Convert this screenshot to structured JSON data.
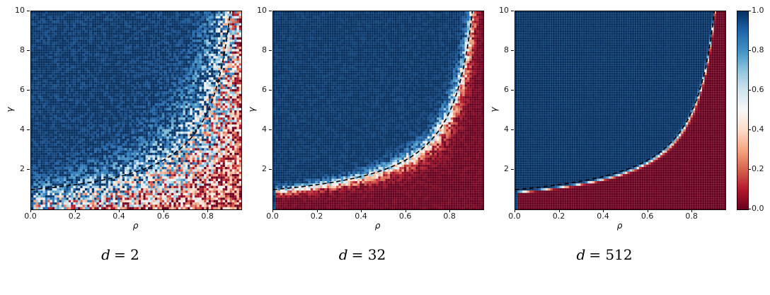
{
  "figure": {
    "background": "#ffffff"
  },
  "chart_data": {
    "type": "heatmap",
    "description": "Three phase-diagram heatmaps of a success probability in [0,1] over (rho, gamma), one per dimension d. Blue (1.0) above the critical curve, red (0.0) below; the transition sharpens and noise decreases as d grows.",
    "colormap": {
      "name": "RdBu",
      "stops": [
        "#67001f",
        "#b2182b",
        "#d6604d",
        "#f4a582",
        "#fddbc7",
        "#f7f7f7",
        "#d1e5f0",
        "#92c5de",
        "#4393c3",
        "#2166ac",
        "#053061"
      ]
    },
    "x": {
      "label": "ρ",
      "min": 0,
      "max": 0.95,
      "ticks": [
        0,
        0.2,
        0.4,
        0.6,
        0.8
      ],
      "tick_labels": [
        "0.0",
        "0.2",
        "0.4",
        "0.6",
        "0.8"
      ]
    },
    "y": {
      "label": "γ",
      "min": 0,
      "max": 10,
      "ticks": [
        2,
        4,
        6,
        8,
        10
      ],
      "tick_labels": [
        "2",
        "4",
        "6",
        "8",
        "10"
      ]
    },
    "colorbar": {
      "min": 0,
      "max": 1,
      "ticks": [
        0,
        0.2,
        0.4,
        0.6,
        0.8,
        1.0
      ],
      "tick_labels": [
        "0.0",
        "0.2",
        "0.4",
        "0.6",
        "0.8",
        "1.0"
      ]
    },
    "critical_curve": {
      "formula": "gamma = 1 / (1 - rho)",
      "color": "#000000",
      "style": "dashed",
      "dash": [
        6,
        4
      ],
      "line_width": 1.6
    },
    "grid_mesh": {
      "nx": 90,
      "ny": 84,
      "line_color": "rgba(255,255,255,0.22)",
      "line_width": 0.5
    },
    "panels": [
      {
        "caption_var": "d",
        "caption_rest": "= 2",
        "d": 2,
        "transition_sharpness": 2.2,
        "transition_offset": 0.3,
        "gamma_shift": 0.8,
        "noise": 0.5,
        "seed": 11
      },
      {
        "caption_var": "d",
        "caption_rest": "= 32",
        "d": 32,
        "transition_sharpness": 10,
        "transition_offset": 0,
        "gamma_shift": 0.08,
        "noise": 0.26,
        "seed": 22
      },
      {
        "caption_var": "d",
        "caption_rest": "= 512",
        "d": 512,
        "transition_sharpness": 55,
        "transition_offset": 0,
        "gamma_shift": 0.15,
        "noise": 0.09,
        "seed": 33
      }
    ]
  }
}
